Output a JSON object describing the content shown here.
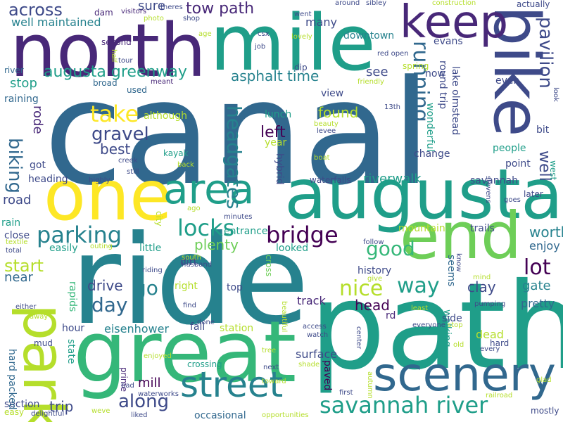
{
  "colors": {
    "background": "#ffffff",
    "palette": [
      "#440154",
      "#482878",
      "#3e4a89",
      "#31688e",
      "#26828e",
      "#1f9e89",
      "#35b779",
      "#6ece58",
      "#b5de2b",
      "#fde725"
    ]
  },
  "words": [
    {
      "text": "canal",
      "weight": 1.0
    },
    {
      "text": "ride",
      "weight": 0.9
    },
    {
      "text": "path",
      "weight": 0.88
    },
    {
      "text": "great",
      "weight": 0.7
    },
    {
      "text": "augusta",
      "weight": 0.62
    },
    {
      "text": "mile",
      "weight": 0.6
    },
    {
      "text": "north",
      "weight": 0.58
    },
    {
      "text": "bike",
      "weight": 0.55
    },
    {
      "text": "one",
      "weight": 0.52
    },
    {
      "text": "end",
      "weight": 0.48
    },
    {
      "text": "park",
      "weight": 0.45
    },
    {
      "text": "scenery",
      "weight": 0.42
    },
    {
      "text": "keep",
      "weight": 0.38
    },
    {
      "text": "street",
      "weight": 0.36
    },
    {
      "text": "area",
      "weight": 0.32
    },
    {
      "text": "savannah river",
      "weight": 0.3
    },
    {
      "text": "bridge",
      "weight": 0.24
    },
    {
      "text": "locks",
      "weight": 0.24
    },
    {
      "text": "parking",
      "weight": 0.24
    },
    {
      "text": "pavilion",
      "weight": 0.22
    },
    {
      "text": "running",
      "weight": 0.22
    },
    {
      "text": "headgates",
      "weight": 0.22
    },
    {
      "text": "take",
      "weight": 0.22
    },
    {
      "text": "lot",
      "weight": 0.22
    },
    {
      "text": "way",
      "weight": 0.21
    },
    {
      "text": "nice",
      "weight": 0.21
    },
    {
      "text": "good",
      "weight": 0.21
    },
    {
      "text": "along",
      "weight": 0.2
    },
    {
      "text": "tow path",
      "weight": 0.18
    },
    {
      "text": "across",
      "weight": 0.18
    },
    {
      "text": "augusta greenway",
      "weight": 0.17
    },
    {
      "text": "gravel",
      "weight": 0.17
    },
    {
      "text": "biking",
      "weight": 0.17
    },
    {
      "text": "day",
      "weight": 0.17
    },
    {
      "text": "go",
      "weight": 0.17
    },
    {
      "text": "start",
      "weight": 0.16
    },
    {
      "text": "asphalt time",
      "weight": 0.16
    },
    {
      "text": "well",
      "weight": 0.16
    },
    {
      "text": "best",
      "weight": 0.15
    },
    {
      "text": "left",
      "weight": 0.15
    },
    {
      "text": "found",
      "weight": 0.15
    },
    {
      "text": "plenty",
      "weight": 0.15
    },
    {
      "text": "worth",
      "weight": 0.15
    },
    {
      "text": "drive",
      "weight": 0.15
    },
    {
      "text": "clay",
      "weight": 0.15
    },
    {
      "text": "trip",
      "weight": 0.15
    },
    {
      "text": "mill",
      "weight": 0.15
    },
    {
      "text": "head",
      "weight": 0.15
    },
    {
      "text": "well maintained",
      "weight": 0.14
    },
    {
      "text": "stop",
      "weight": 0.14
    },
    {
      "text": "road",
      "weight": 0.14
    },
    {
      "text": "riverwalk",
      "weight": 0.14
    },
    {
      "text": "near",
      "weight": 0.14
    },
    {
      "text": "gate",
      "weight": 0.14
    },
    {
      "text": "see",
      "weight": 0.14
    },
    {
      "text": "enjoy",
      "weight": 0.13
    },
    {
      "text": "sure",
      "weight": 0.13
    },
    {
      "text": "rode",
      "weight": 0.13
    },
    {
      "text": "eisenhower",
      "weight": 0.12
    },
    {
      "text": "track",
      "weight": 0.12
    },
    {
      "text": "surface",
      "weight": 0.12
    },
    {
      "text": "many",
      "weight": 0.12
    },
    {
      "text": "pretty",
      "weight": 0.12
    },
    {
      "text": "history",
      "weight": 0.12
    },
    {
      "text": "wonderful",
      "weight": 0.11
    },
    {
      "text": "change",
      "weight": 0.11
    },
    {
      "text": "fall",
      "weight": 0.11
    },
    {
      "text": "hour",
      "weight": 0.11
    },
    {
      "text": "dead",
      "weight": 0.11
    },
    {
      "text": "lunch",
      "weight": 0.11
    },
    {
      "text": "view",
      "weight": 0.11
    },
    {
      "text": "dirt",
      "weight": 0.11
    },
    {
      "text": "looked",
      "weight": 0.11
    },
    {
      "text": "little",
      "weight": 0.11
    },
    {
      "text": "trails",
      "weight": 0.11
    },
    {
      "text": "people",
      "weight": 0.11
    },
    {
      "text": "downtown",
      "weight": 0.11
    },
    {
      "text": "walking",
      "weight": 0.11
    },
    {
      "text": "right",
      "weight": 0.1
    },
    {
      "text": "rapids",
      "weight": 0.1
    },
    {
      "text": "evans",
      "weight": 0.1
    },
    {
      "text": "raining",
      "weight": 0.1
    },
    {
      "text": "occasional",
      "weight": 0.1
    },
    {
      "text": "easily",
      "weight": 0.1
    },
    {
      "text": "lake olmstead",
      "weight": 0.1
    },
    {
      "text": "hybrid",
      "weight": 0.1
    },
    {
      "text": "seems",
      "weight": 0.1
    },
    {
      "text": "bit",
      "weight": 0.1
    },
    {
      "text": "station",
      "weight": 0.1
    },
    {
      "text": "side",
      "weight": 0.1
    },
    {
      "text": "got",
      "weight": 0.1
    },
    {
      "text": "section",
      "weight": 0.1
    },
    {
      "text": "close",
      "weight": 0.1
    },
    {
      "text": "heading",
      "weight": 0.1
    },
    {
      "text": "although",
      "weight": 0.1
    },
    {
      "text": "entrance",
      "weight": 0.1
    },
    {
      "text": "year",
      "weight": 0.1
    },
    {
      "text": "rd",
      "weight": 0.1
    },
    {
      "text": "top",
      "weight": 0.1
    },
    {
      "text": "round trip",
      "weight": 0.1
    },
    {
      "text": "mountain",
      "weight": 0.09
    },
    {
      "text": "point",
      "weight": 0.09
    },
    {
      "text": "paved",
      "weight": 0.09
    },
    {
      "text": "even",
      "weight": 0.09
    },
    {
      "text": "hard packed",
      "weight": 0.09
    },
    {
      "text": "state",
      "weight": 0.09
    },
    {
      "text": "savannah",
      "weight": 0.09
    },
    {
      "text": "rain",
      "weight": 0.09
    },
    {
      "text": "now",
      "weight": 0.09
    },
    {
      "text": "west",
      "weight": 0.09
    },
    {
      "text": "river",
      "weight": 0.09
    },
    {
      "text": "hard",
      "weight": 0.09
    },
    {
      "text": "prime",
      "weight": 0.08
    },
    {
      "text": "city",
      "weight": 0.08
    },
    {
      "text": "dip",
      "weight": 0.08
    },
    {
      "text": "later",
      "weight": 0.08
    },
    {
      "text": "mostly",
      "weight": 0.08
    },
    {
      "text": "kayak",
      "weight": 0.08
    },
    {
      "text": "cross",
      "weight": 0.08
    },
    {
      "text": "waterfalls",
      "weight": 0.08
    },
    {
      "text": "crossing",
      "weight": 0.08
    },
    {
      "text": "broad",
      "weight": 0.08
    },
    {
      "text": "spring",
      "weight": 0.08
    },
    {
      "text": "easy",
      "weight": 0.08
    },
    {
      "text": "second",
      "weight": 0.08
    },
    {
      "text": "dam",
      "weight": 0.08
    },
    {
      "text": "actually",
      "weight": 0.08
    },
    {
      "text": "used",
      "weight": 0.08
    },
    {
      "text": "mud",
      "weight": 0.08
    },
    {
      "text": "tour",
      "weight": 0.07
    },
    {
      "text": "meant",
      "weight": 0.07
    },
    {
      "text": "visitors",
      "weight": 0.07
    },
    {
      "text": "theres",
      "weight": 0.07
    },
    {
      "text": "shop",
      "weight": 0.07
    },
    {
      "text": "age",
      "weight": 0.07
    },
    {
      "text": "csx",
      "weight": 0.07
    },
    {
      "text": "job",
      "weight": 0.07
    },
    {
      "text": "went",
      "weight": 0.07
    },
    {
      "text": "lovely",
      "weight": 0.07
    },
    {
      "text": "around",
      "weight": 0.07
    },
    {
      "text": "sibley",
      "weight": 0.07
    },
    {
      "text": "construction",
      "weight": 0.07
    },
    {
      "text": "red open",
      "weight": 0.07
    },
    {
      "text": "friendly",
      "weight": 0.07
    },
    {
      "text": "13th",
      "weight": 0.07
    },
    {
      "text": "beauty",
      "weight": 0.07
    },
    {
      "text": "levee",
      "weight": 0.07
    },
    {
      "text": "boat",
      "weight": 0.07
    },
    {
      "text": "creek",
      "weight": 0.07
    },
    {
      "text": "still",
      "weight": 0.07
    },
    {
      "text": "highly",
      "weight": 0.07
    },
    {
      "text": "back",
      "weight": 0.07
    },
    {
      "text": "photo",
      "weight": 0.07
    },
    {
      "text": "half",
      "weight": 0.07
    },
    {
      "text": "look",
      "weight": 0.07
    },
    {
      "text": "goes",
      "weight": 0.07
    },
    {
      "text": "stevens",
      "weight": 0.07
    },
    {
      "text": "ago",
      "weight": 0.07
    },
    {
      "text": "minutes",
      "weight": 0.07
    },
    {
      "text": "textile",
      "weight": 0.07
    },
    {
      "text": "total",
      "weight": 0.07
    },
    {
      "text": "outing",
      "weight": 0.07
    },
    {
      "text": "south",
      "weight": 0.07
    },
    {
      "text": "husband",
      "weight": 0.07
    },
    {
      "text": "riding",
      "weight": 0.07
    },
    {
      "text": "follow",
      "weight": 0.07
    },
    {
      "text": "give",
      "weight": 0.07
    },
    {
      "text": "know",
      "weight": 0.07
    },
    {
      "text": "mind",
      "weight": 0.07
    },
    {
      "text": "either",
      "weight": 0.07
    },
    {
      "text": "away",
      "weight": 0.07
    },
    {
      "text": "find",
      "weight": 0.07
    },
    {
      "text": "done",
      "weight": 0.07
    },
    {
      "text": "beautiful",
      "weight": 0.07
    },
    {
      "text": "least",
      "weight": 0.07
    },
    {
      "text": "pumping",
      "weight": 0.07
    },
    {
      "text": "access",
      "weight": 0.07
    },
    {
      "text": "watch",
      "weight": 0.07
    },
    {
      "text": "center",
      "weight": 0.07
    },
    {
      "text": "everyone",
      "weight": 0.07
    },
    {
      "text": "stop",
      "weight": 0.07
    },
    {
      "text": "old",
      "weight": 0.07
    },
    {
      "text": "every",
      "weight": 0.07
    },
    {
      "text": "enjoyed",
      "weight": 0.07
    },
    {
      "text": "tree",
      "weight": 0.07
    },
    {
      "text": "shade",
      "weight": 0.07
    },
    {
      "text": "next",
      "weight": 0.07
    },
    {
      "text": "toward",
      "weight": 0.07
    },
    {
      "text": "glad",
      "weight": 0.07
    },
    {
      "text": "first",
      "weight": 0.07
    },
    {
      "text": "autumn",
      "weight": 0.07
    },
    {
      "text": "railroad",
      "weight": 0.07
    },
    {
      "text": "bad",
      "weight": 0.07
    },
    {
      "text": "waterworks",
      "weight": 0.07
    },
    {
      "text": "weve",
      "weight": 0.07
    },
    {
      "text": "liked",
      "weight": 0.07
    },
    {
      "text": "delightful",
      "weight": 0.07
    },
    {
      "text": "opportunities",
      "weight": 0.07
    }
  ]
}
